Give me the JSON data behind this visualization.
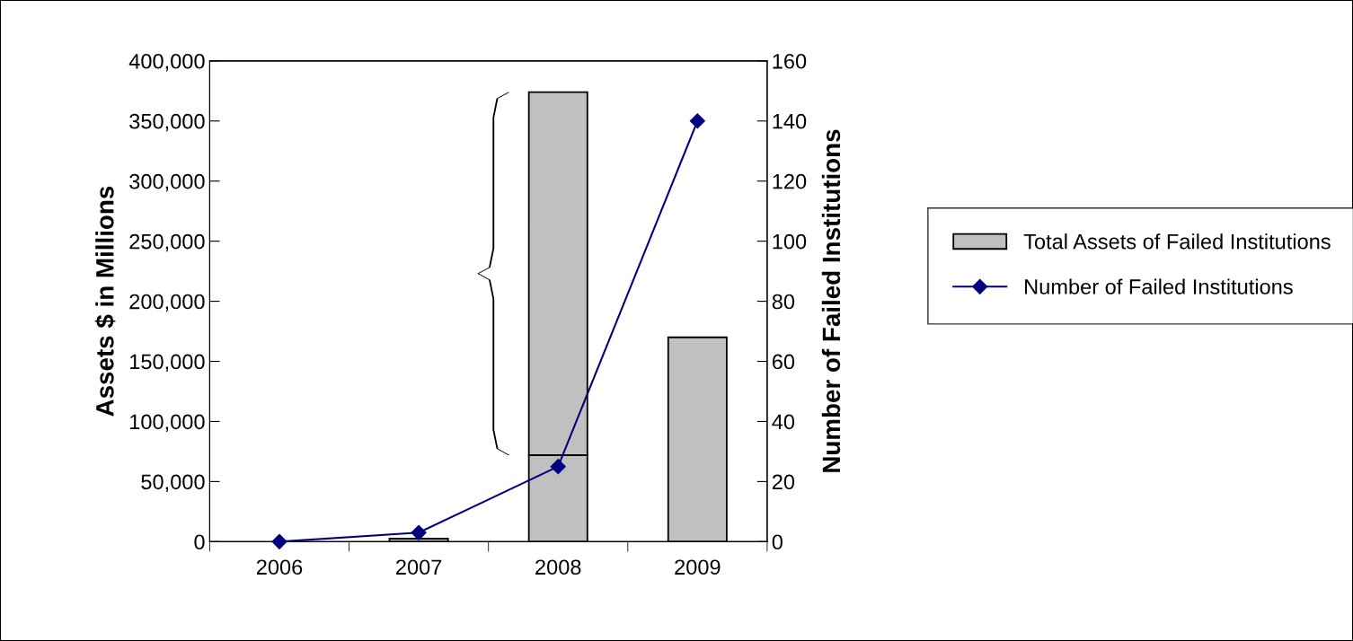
{
  "chart_data": {
    "type": "bar",
    "stacked": true,
    "ylabel": "Assets $ in Millions",
    "y2label": "Number of Failed Institutions",
    "categories": [
      "2006",
      "2007",
      "2008",
      "2009"
    ],
    "series": [
      {
        "name": "Total Assets of Failed Institutions",
        "color": "#c0c0c0",
        "values": [
          null,
          2500,
          72000,
          170000
        ]
      },
      {
        "color": "#c0c0c0",
        "values": [
          null,
          null,
          302000,
          null
        ]
      },
      {
        "name": "Number of Failed Institutions",
        "type": "line",
        "axis": "y2",
        "color": "#000080",
        "marker": "diamond",
        "values": [
          0,
          3,
          25,
          140
        ]
      }
    ],
    "ylim": [
      0,
      400000
    ],
    "yticks": [
      {
        "value": 0,
        "label": "0"
      },
      {
        "value": 50000,
        "label": "50,000"
      },
      {
        "value": 100000,
        "label": "100,000"
      },
      {
        "value": 150000,
        "label": "150,000"
      },
      {
        "value": 200000,
        "label": "200,000"
      },
      {
        "value": 250000,
        "label": "250,000"
      },
      {
        "value": 300000,
        "label": "300,000"
      },
      {
        "value": 350000,
        "label": "350,000"
      },
      {
        "value": 400000,
        "label": "400,000"
      }
    ],
    "y2lim": [
      0,
      160
    ],
    "y2ticks": [
      0,
      20,
      40,
      60,
      80,
      100,
      120,
      140,
      160
    ],
    "grid": false,
    "legend": "right"
  }
}
